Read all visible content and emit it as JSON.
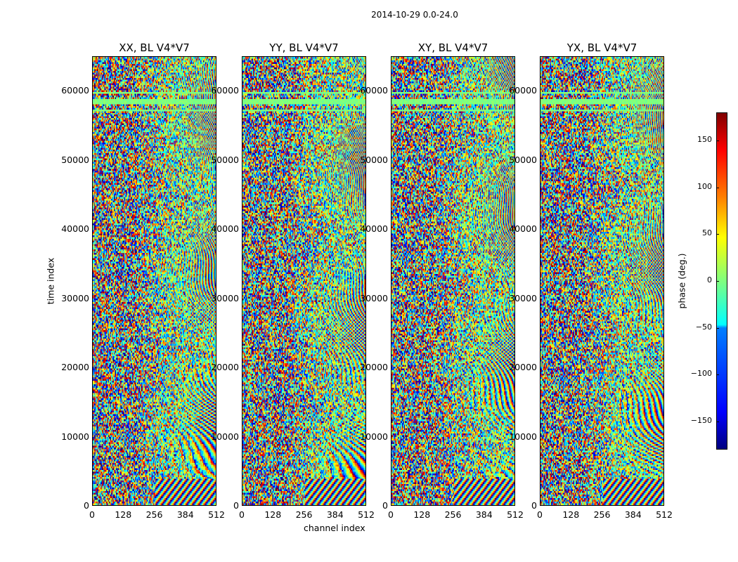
{
  "suptitle": "2014-10-29 0.0-24.0",
  "chart_data": {
    "type": "heatmap",
    "title": "2014-10-29 0.0-24.0",
    "xlabel": "channel index",
    "ylabel": "time index",
    "xlim": [
      0,
      512
    ],
    "ylim": [
      0,
      65000
    ],
    "xticks": [
      "0",
      "128",
      "256",
      "384",
      "512"
    ],
    "yticks": [
      "0",
      "10000",
      "20000",
      "30000",
      "40000",
      "50000",
      "60000"
    ],
    "panels": [
      {
        "title": "XX, BL V4*V7"
      },
      {
        "title": "YY, BL V4*V7"
      },
      {
        "title": "XY, BL V4*V7"
      },
      {
        "title": "YX, BL V4*V7"
      }
    ],
    "colorbar": {
      "label": "phase (deg.)",
      "colormap": "jet",
      "clim": [
        -180,
        180
      ],
      "ticks": [
        "150",
        "100",
        "50",
        "0",
        "−50",
        "−100",
        "−150"
      ],
      "tick_values": [
        150,
        100,
        50,
        0,
        -50,
        -100,
        -150
      ]
    }
  }
}
